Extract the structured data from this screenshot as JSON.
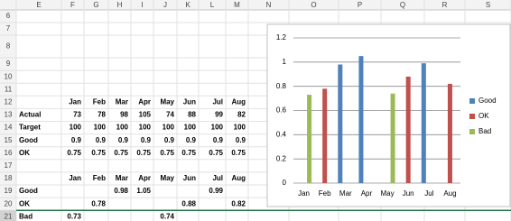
{
  "columns": [
    "E",
    "F",
    "G",
    "H",
    "I",
    "J",
    "K",
    "L",
    "M",
    "N",
    "O",
    "P",
    "Q",
    "R",
    "S"
  ],
  "rows": [
    {
      "number": "6",
      "cells": []
    },
    {
      "number": "7",
      "cells": []
    },
    {
      "number": "8",
      "cells": []
    },
    {
      "number": "9",
      "cells": []
    },
    {
      "number": "10",
      "cells": []
    },
    {
      "number": "11",
      "cells": []
    },
    {
      "number": "12",
      "cells": [
        null,
        "Jan",
        "Feb",
        "Mar",
        "Apr",
        "May",
        "Jun",
        "Jul",
        "Aug"
      ]
    },
    {
      "number": "13",
      "cells": [
        "Actual",
        73,
        78,
        98,
        105,
        74,
        88,
        99,
        82
      ]
    },
    {
      "number": "14",
      "cells": [
        "Target",
        100,
        100,
        100,
        100,
        100,
        100,
        100,
        100
      ]
    },
    {
      "number": "15",
      "cells": [
        "Good",
        0.9,
        0.9,
        0.9,
        0.9,
        0.9,
        0.9,
        0.9,
        0.9
      ]
    },
    {
      "number": "16",
      "cells": [
        "OK",
        0.75,
        0.75,
        0.75,
        0.75,
        0.75,
        0.75,
        0.75,
        0.75
      ]
    },
    {
      "number": "17",
      "cells": []
    },
    {
      "number": "18",
      "cells": [
        null,
        "Jan",
        "Feb",
        "Mar",
        "Apr",
        "May",
        "Jun",
        "Jul",
        "Aug"
      ]
    },
    {
      "number": "19",
      "cells": [
        "Good",
        null,
        null,
        0.98,
        1.05,
        null,
        null,
        0.99,
        null
      ]
    },
    {
      "number": "20",
      "cells": [
        "OK",
        null,
        0.78,
        null,
        null,
        null,
        0.88,
        null,
        0.82
      ]
    },
    {
      "number": "21",
      "cells": [
        "Bad",
        0.73,
        null,
        null,
        null,
        0.74,
        null,
        null,
        null
      ]
    }
  ],
  "chart_data": {
    "type": "bar",
    "categories": [
      "Jan",
      "Feb",
      "Mar",
      "Apr",
      "May",
      "Jun",
      "Jul",
      "Aug"
    ],
    "series": [
      {
        "name": "Good",
        "color": "#4f81bd",
        "values": [
          null,
          null,
          0.98,
          1.05,
          null,
          null,
          0.99,
          null
        ]
      },
      {
        "name": "OK",
        "color": "#c0504d",
        "values": [
          null,
          0.78,
          null,
          null,
          null,
          0.88,
          null,
          0.82
        ]
      },
      {
        "name": "Bad",
        "color": "#9bbb59",
        "values": [
          0.73,
          null,
          null,
          null,
          0.74,
          null,
          null,
          null
        ]
      }
    ],
    "ylim": [
      0,
      1.2
    ],
    "yticks": [
      0,
      0.2,
      0.4,
      0.6,
      0.8,
      1,
      1.2
    ],
    "grid": true,
    "legend": "right"
  }
}
